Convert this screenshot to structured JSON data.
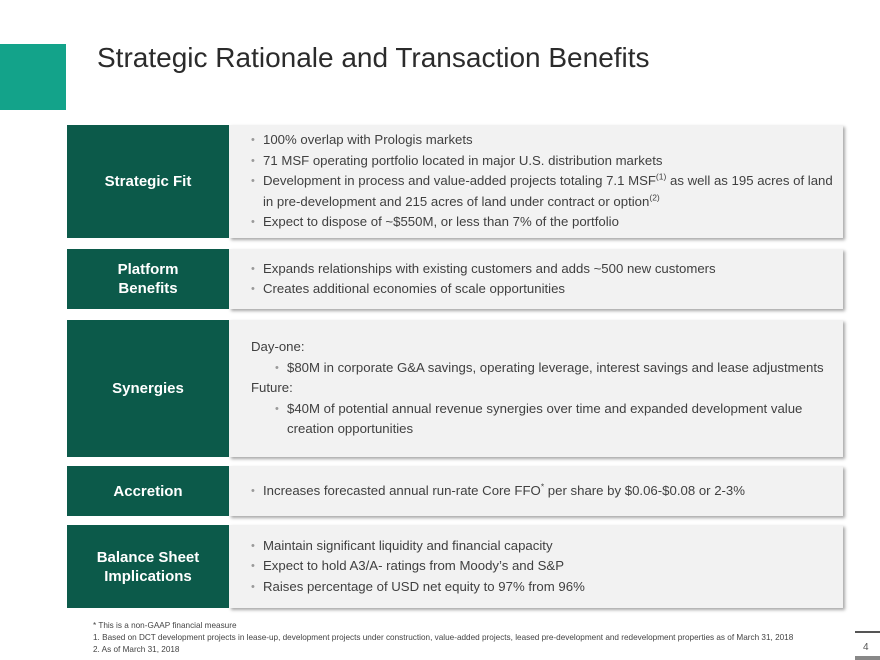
{
  "title": "Strategic Rationale and Transaction Benefits",
  "rows": [
    {
      "label": "Strategic Fit",
      "bullets": [
        "100% overlap with Prologis markets",
        "71 MSF operating portfolio located in major U.S. distribution markets",
        "Development in process and value-added projects totaling 7.1 MSF",
        "as well as 195 acres of land",
        "in pre-development and 215 acres of land under contract or option",
        "Expect to dispose of ~$550M, or less than 7% of the portfolio"
      ],
      "sup1": "(1)",
      "sup2": "(2)"
    },
    {
      "label_line1": "Platform",
      "label_line2": "Benefits",
      "bullets": [
        "Expands relationships with existing customers and adds ~500 new customers",
        "Creates additional economies of scale opportunities"
      ]
    },
    {
      "label": "Synergies",
      "day_one": "Day-one:",
      "day_one_bullet": "$80M in corporate G&A savings, operating leverage, interest savings and lease adjustments",
      "future": "Future:",
      "future_bullet_line1": "$40M of potential annual revenue synergies over time and expanded development value",
      "future_bullet_line2": "creation opportunities"
    },
    {
      "label": "Accretion",
      "bullet_pre": "Increases forecasted annual run-rate Core FFO",
      "sup": "*",
      "bullet_post": " per share by $0.06-$0.08 or 2-3%"
    },
    {
      "label_line1": "Balance Sheet",
      "label_line2": "Implications",
      "bullets": [
        "Maintain significant liquidity and financial capacity",
        "Expect to hold A3/A- ratings from Moody’s and S&P",
        "Raises percentage of USD net equity to 97% from 96%"
      ]
    }
  ],
  "footnotes": [
    "* This is a non-GAAP financial measure",
    "1.  Based on DCT development projects in lease-up, development projects under construction, value-added projects, leased pre-development and redevelopment properties as of March 31, 2018",
    "2.  As of March 31, 2018"
  ],
  "page_number": "4",
  "colors": {
    "accent": "#13a38a",
    "label_bg": "#0c5a4a",
    "body_bg": "#f2f2f2"
  }
}
